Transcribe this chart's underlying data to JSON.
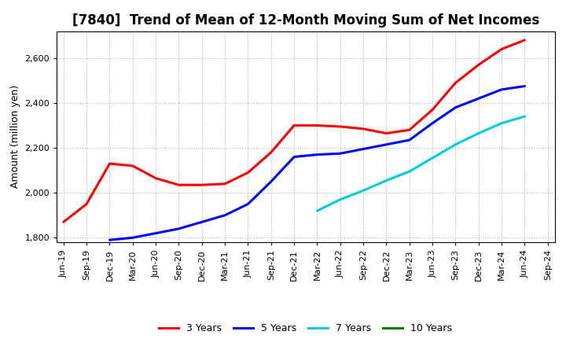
{
  "title": "[7840]  Trend of Mean of 12-Month Moving Sum of Net Incomes",
  "ylabel": "Amount (million yen)",
  "ylim": [
    1780,
    2720
  ],
  "yticks": [
    1800,
    2000,
    2200,
    2400,
    2600
  ],
  "background_color": "#ffffff",
  "grid_color": "#b0b0b0",
  "x_labels": [
    "Jun-19",
    "Sep-19",
    "Dec-19",
    "Mar-20",
    "Jun-20",
    "Sep-20",
    "Dec-20",
    "Mar-21",
    "Jun-21",
    "Sep-21",
    "Dec-21",
    "Mar-22",
    "Jun-22",
    "Sep-22",
    "Dec-22",
    "Mar-23",
    "Jun-23",
    "Sep-23",
    "Dec-23",
    "Mar-24",
    "Jun-24",
    "Sep-24"
  ],
  "series": {
    "3 Years": {
      "color": "#ff0000",
      "data_x": [
        0,
        1,
        2,
        3,
        4,
        5,
        6,
        7,
        8,
        9,
        10,
        11,
        12,
        13,
        14,
        15,
        16,
        17,
        18,
        19,
        20
      ],
      "data_y": [
        1870,
        1950,
        2130,
        2120,
        2065,
        2035,
        2035,
        2040,
        2090,
        2180,
        2300,
        2300,
        2295,
        2285,
        2265,
        2280,
        2370,
        2490,
        2570,
        2640,
        2680
      ]
    },
    "5 Years": {
      "color": "#0000ff",
      "data_x": [
        2,
        3,
        4,
        5,
        6,
        7,
        8,
        9,
        10,
        11,
        12,
        13,
        14,
        15,
        16,
        17,
        18,
        19,
        20
      ],
      "data_y": [
        1790,
        1800,
        1820,
        1840,
        1870,
        1900,
        1950,
        2050,
        2160,
        2170,
        2175,
        2195,
        2215,
        2235,
        2310,
        2380,
        2420,
        2460,
        2475
      ]
    },
    "7 Years": {
      "color": "#00ccdd",
      "data_x": [
        11,
        12,
        13,
        14,
        15,
        16,
        17,
        18,
        19,
        20
      ],
      "data_y": [
        1920,
        1970,
        2010,
        2055,
        2095,
        2155,
        2215,
        2265,
        2310,
        2340
      ]
    },
    "10 Years": {
      "color": "#008000",
      "data_x": [],
      "data_y": []
    }
  },
  "legend_entries": [
    "3 Years",
    "5 Years",
    "7 Years",
    "10 Years"
  ],
  "legend_colors": [
    "#ff0000",
    "#0000ff",
    "#00ccdd",
    "#008000"
  ],
  "title_fontsize": 12,
  "ylabel_fontsize": 9,
  "tick_fontsize": 8,
  "legend_fontsize": 9,
  "linewidth": 2.2
}
